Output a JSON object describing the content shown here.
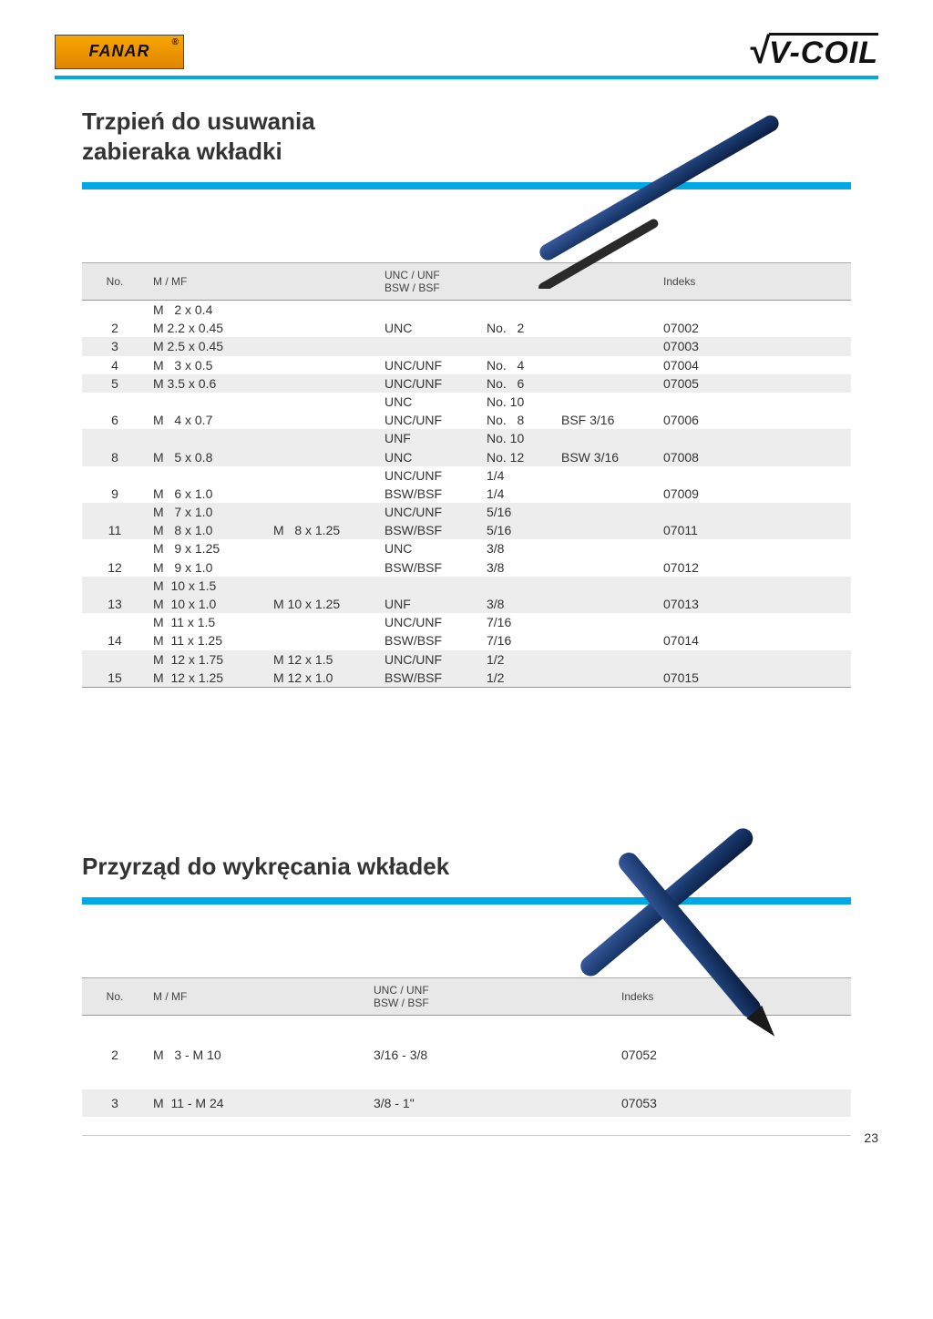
{
  "header": {
    "left_logo": "FANAR",
    "right_logo": "V-COIL"
  },
  "page_number": "23",
  "section1": {
    "title_line1": "Trzpień do usuwania",
    "title_line2": "zabieraka wkładki",
    "table": {
      "columns": {
        "no": "No.",
        "m": "M / MF",
        "unc": "UNC / UNF\nBSW / BSF",
        "idx": "Indeks"
      },
      "rows": [
        {
          "no": "",
          "m1": "M   2 x 0.4",
          "m2": "",
          "unc": "",
          "sz": "",
          "bsf": "",
          "idx": "",
          "grey": false
        },
        {
          "no": "2",
          "m1": "M 2.2 x 0.45",
          "m2": "",
          "unc": "UNC",
          "sz": "No.   2",
          "bsf": "",
          "idx": "07002",
          "grey": false
        },
        {
          "no": "3",
          "m1": "M 2.5 x 0.45",
          "m2": "",
          "unc": "",
          "sz": "",
          "bsf": "",
          "idx": "07003",
          "grey": true
        },
        {
          "no": "4",
          "m1": "M   3 x 0.5",
          "m2": "",
          "unc": "UNC/UNF",
          "sz": "No.   4",
          "bsf": "",
          "idx": "07004",
          "grey": false
        },
        {
          "no": "5",
          "m1": "M 3.5 x 0.6",
          "m2": "",
          "unc": "UNC/UNF",
          "sz": "No.   6",
          "bsf": "",
          "idx": "07005",
          "grey": true
        },
        {
          "no": "",
          "m1": "",
          "m2": "",
          "unc": "UNC",
          "sz": "No. 10",
          "bsf": "",
          "idx": "",
          "grey": false
        },
        {
          "no": "6",
          "m1": "M   4 x 0.7",
          "m2": "",
          "unc": "UNC/UNF",
          "sz": "No.   8",
          "bsf": "BSF 3/16",
          "idx": "07006",
          "grey": false
        },
        {
          "no": "",
          "m1": "",
          "m2": "",
          "unc": "UNF",
          "sz": "No. 10",
          "bsf": "",
          "idx": "",
          "grey": true
        },
        {
          "no": "8",
          "m1": "M   5 x 0.8",
          "m2": "",
          "unc": "UNC",
          "sz": "No. 12",
          "bsf": "BSW 3/16",
          "idx": "07008",
          "grey": true
        },
        {
          "no": "",
          "m1": "",
          "m2": "",
          "unc": "UNC/UNF",
          "sz": "1/4",
          "bsf": "",
          "idx": "",
          "grey": false
        },
        {
          "no": "9",
          "m1": "M   6 x 1.0",
          "m2": "",
          "unc": "BSW/BSF",
          "sz": "1/4",
          "bsf": "",
          "idx": "07009",
          "grey": false
        },
        {
          "no": "",
          "m1": "M   7 x 1.0",
          "m2": "",
          "unc": "UNC/UNF",
          "sz": "5/16",
          "bsf": "",
          "idx": "",
          "grey": true
        },
        {
          "no": "11",
          "m1": "M   8 x 1.0",
          "m2": "M   8 x 1.25",
          "unc": "BSW/BSF",
          "sz": "5/16",
          "bsf": "",
          "idx": "07011",
          "grey": true
        },
        {
          "no": "",
          "m1": "M   9 x 1.25",
          "m2": "",
          "unc": "UNC",
          "sz": "3/8",
          "bsf": "",
          "idx": "",
          "grey": false
        },
        {
          "no": "12",
          "m1": "M   9 x 1.0",
          "m2": "",
          "unc": "BSW/BSF",
          "sz": "3/8",
          "bsf": "",
          "idx": "07012",
          "grey": false
        },
        {
          "no": "",
          "m1": "M  10 x 1.5",
          "m2": "",
          "unc": "",
          "sz": "",
          "bsf": "",
          "idx": "",
          "grey": true
        },
        {
          "no": "13",
          "m1": "M  10 x 1.0",
          "m2": "M 10 x 1.25",
          "unc": "UNF",
          "sz": "3/8",
          "bsf": "",
          "idx": "07013",
          "grey": true
        },
        {
          "no": "",
          "m1": "M  11 x 1.5",
          "m2": "",
          "unc": "UNC/UNF",
          "sz": "7/16",
          "bsf": "",
          "idx": "",
          "grey": false
        },
        {
          "no": "14",
          "m1": "M  11 x 1.25",
          "m2": "",
          "unc": "BSW/BSF",
          "sz": "7/16",
          "bsf": "",
          "idx": "07014",
          "grey": false
        },
        {
          "no": "",
          "m1": "M  12 x 1.75",
          "m2": "M 12 x 1.5",
          "unc": "UNC/UNF",
          "sz": "1/2",
          "bsf": "",
          "idx": "",
          "grey": true
        },
        {
          "no": "15",
          "m1": "M  12 x 1.25",
          "m2": "M 12 x 1.0",
          "unc": "BSW/BSF",
          "sz": "1/2",
          "bsf": "",
          "idx": "07015",
          "grey": true
        }
      ]
    }
  },
  "section2": {
    "title": "Przyrząd do wykręcania wkładek",
    "table": {
      "columns": {
        "no": "No.",
        "m": "M / MF",
        "unc": "UNC / UNF\nBSW / BSF",
        "idx": "Indeks"
      },
      "rows": [
        {
          "no": "2",
          "m": "M   3 - M 10",
          "unc": "3/16 - 3/8",
          "idx": "07052",
          "grey": false
        },
        {
          "no": "3",
          "m": "M  11 - M 24",
          "unc": "3/8 - 1\"",
          "idx": "07053",
          "grey": true
        }
      ]
    }
  },
  "colors": {
    "accent": "#00a8e6",
    "logo_bg": "#f7a600",
    "grey_row": "#ededed",
    "tool": "#1a3a6e"
  }
}
